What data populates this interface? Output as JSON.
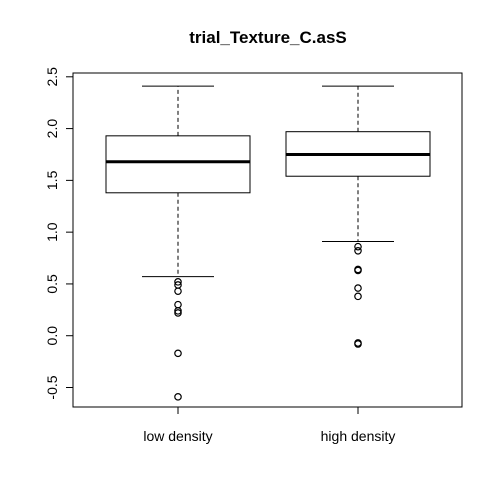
{
  "chart_data": {
    "type": "box",
    "title": "trial_Texture_C.asS",
    "xlabel": "",
    "ylabel": "",
    "ylim": [
      -0.7,
      2.55
    ],
    "yticks": [
      "-0.5",
      "0.0",
      "0.5",
      "1.0",
      "1.5",
      "2.0",
      "2.5"
    ],
    "categories": [
      "low density",
      "high density"
    ],
    "boxes": [
      {
        "name": "low density",
        "whisker_low": 0.57,
        "q1": 1.38,
        "median": 1.68,
        "q3": 1.93,
        "whisker_high": 2.41,
        "outliers": [
          0.52,
          0.49,
          0.43,
          0.3,
          0.24,
          0.22,
          -0.17,
          -0.59
        ]
      },
      {
        "name": "high density",
        "whisker_low": 0.91,
        "q1": 1.54,
        "median": 1.75,
        "q3": 1.97,
        "whisker_high": 2.41,
        "outliers": [
          0.86,
          0.82,
          0.64,
          0.63,
          0.46,
          0.38,
          -0.07,
          -0.08
        ]
      }
    ],
    "grid": false,
    "legend": "none"
  }
}
